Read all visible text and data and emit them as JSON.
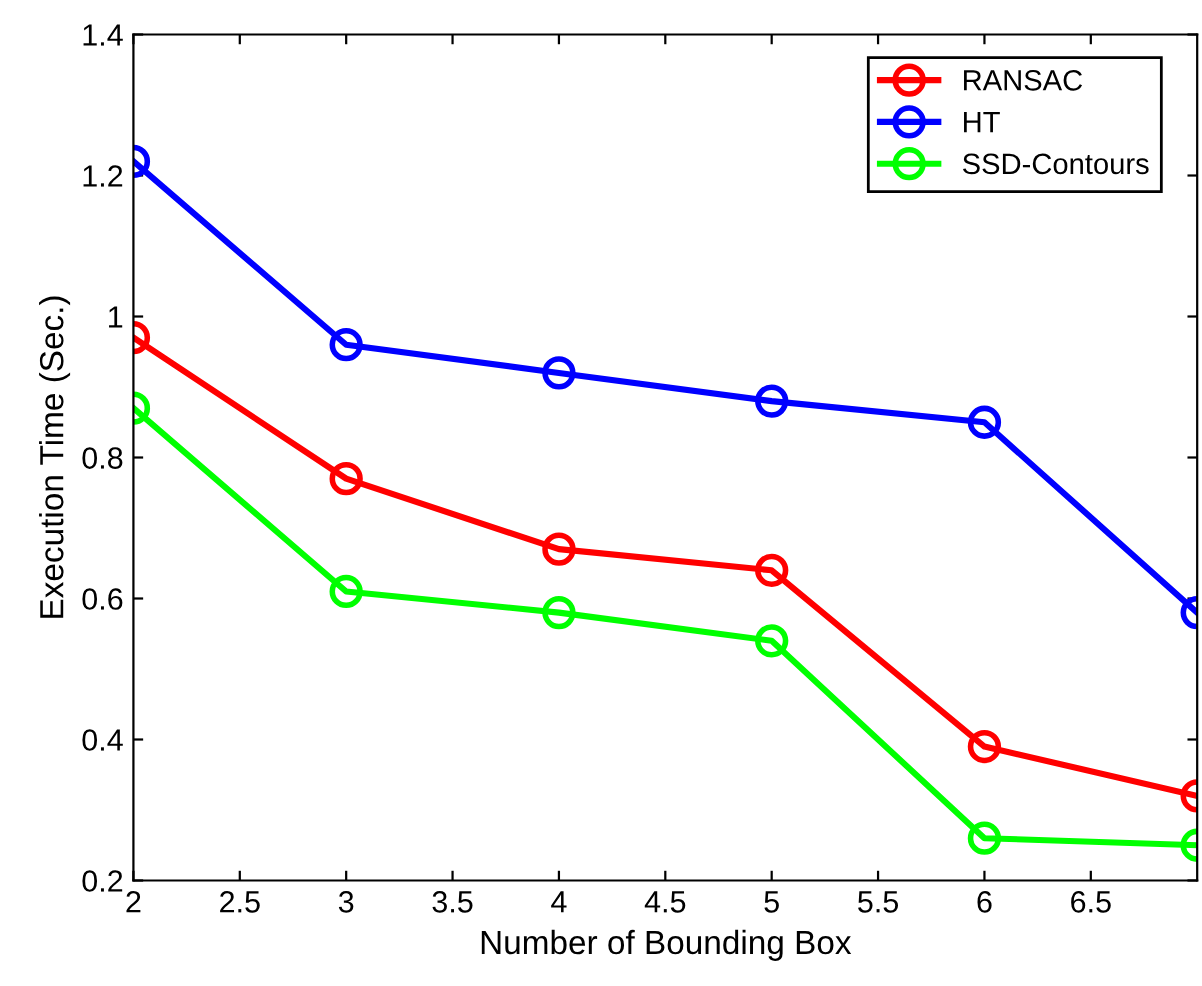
{
  "chart_data": {
    "type": "line",
    "xlabel": "Number of Bounding Box",
    "ylabel": "Execution Time (Sec.)",
    "x": [
      2,
      3,
      4,
      5,
      6,
      7
    ],
    "series": [
      {
        "name": "RANSAC",
        "color": "#ff0000",
        "values": [
          0.97,
          0.77,
          0.67,
          0.64,
          0.39,
          0.32
        ]
      },
      {
        "name": "HT",
        "color": "#0000ff",
        "values": [
          1.22,
          0.96,
          0.92,
          0.88,
          0.85,
          0.58
        ]
      },
      {
        "name": "SSD-Contours",
        "color": "#00ff00",
        "values": [
          0.87,
          0.61,
          0.58,
          0.54,
          0.26,
          0.25
        ]
      }
    ],
    "xlim": [
      2,
      7
    ],
    "xticks": [
      2,
      2.5,
      3,
      3.5,
      4,
      4.5,
      5,
      5.5,
      6,
      6.5
    ],
    "ylim": [
      0.2,
      1.4
    ],
    "yticks": [
      0.2,
      0.4,
      0.6,
      0.8,
      1,
      1.2,
      1.4
    ],
    "marker": "circle",
    "line_style": "solid",
    "legend": "top right",
    "grid": false
  }
}
